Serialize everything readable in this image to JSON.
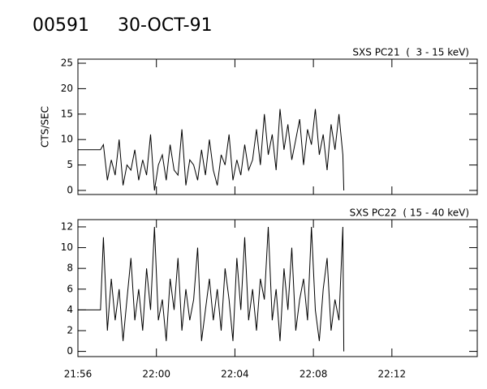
{
  "header": {
    "id": "00591",
    "date": "30-OCT-91"
  },
  "chart_data": [
    {
      "type": "line",
      "label": "SXS PC21  (  3 - 15 keV)",
      "ylabel": "CTS/SEC",
      "color": "#000000",
      "xlim": [
        1316,
        1336.35
      ],
      "ylim": [
        -0.8,
        25.8
      ],
      "yticks": [
        0,
        5,
        10,
        15,
        20,
        25
      ],
      "xticks": [
        1316,
        1320,
        1324,
        1328,
        1332
      ],
      "x": [
        1316,
        1317.15,
        1317.3,
        1317.5,
        1317.7,
        1317.9,
        1318.1,
        1318.3,
        1318.5,
        1318.7,
        1318.9,
        1319.1,
        1319.3,
        1319.5,
        1319.7,
        1319.9,
        1320.1,
        1320.3,
        1320.5,
        1320.7,
        1320.9,
        1321.1,
        1321.3,
        1321.5,
        1321.7,
        1321.9,
        1322.1,
        1322.3,
        1322.5,
        1322.7,
        1322.9,
        1323.1,
        1323.3,
        1323.5,
        1323.7,
        1323.9,
        1324.1,
        1324.3,
        1324.5,
        1324.7,
        1324.9,
        1325.1,
        1325.3,
        1325.5,
        1325.7,
        1325.9,
        1326.1,
        1326.3,
        1326.5,
        1326.7,
        1326.9,
        1327.1,
        1327.3,
        1327.5,
        1327.7,
        1327.9,
        1328.1,
        1328.3,
        1328.5,
        1328.7,
        1328.9,
        1329.1,
        1329.3,
        1329.5,
        1329.55
      ],
      "values": [
        8,
        8,
        9,
        2,
        6,
        3,
        10,
        1,
        5,
        4,
        8,
        2,
        6,
        3,
        11,
        0,
        5,
        7,
        2,
        9,
        4,
        3,
        12,
        1,
        6,
        5,
        2,
        8,
        3,
        10,
        4,
        1,
        7,
        5,
        11,
        2,
        6,
        3,
        9,
        4,
        6,
        12,
        5,
        15,
        7,
        11,
        4,
        16,
        8,
        13,
        6,
        10,
        14,
        5,
        12,
        9,
        16,
        7,
        11,
        4,
        13,
        8,
        15,
        7,
        0
      ]
    },
    {
      "type": "line",
      "label": "SXS PC22  ( 15 - 40 keV)",
      "color": "#000000",
      "xlim": [
        1316,
        1336.35
      ],
      "ylim": [
        -0.5,
        12.7
      ],
      "yticks": [
        0,
        2,
        4,
        6,
        8,
        10,
        12
      ],
      "xticks": [
        {
          "value": 1316,
          "label": "21:56"
        },
        {
          "value": 1320,
          "label": "22:00"
        },
        {
          "value": 1324,
          "label": "22:04"
        },
        {
          "value": 1328,
          "label": "22:08"
        },
        {
          "value": 1332,
          "label": "22:12"
        }
      ],
      "x": [
        1316,
        1317.15,
        1317.3,
        1317.5,
        1317.7,
        1317.9,
        1318.1,
        1318.3,
        1318.5,
        1318.7,
        1318.9,
        1319.1,
        1319.3,
        1319.5,
        1319.7,
        1319.9,
        1320.1,
        1320.3,
        1320.5,
        1320.7,
        1320.9,
        1321.1,
        1321.3,
        1321.5,
        1321.7,
        1321.9,
        1322.1,
        1322.3,
        1322.5,
        1322.7,
        1322.9,
        1323.1,
        1323.3,
        1323.5,
        1323.7,
        1323.9,
        1324.1,
        1324.3,
        1324.5,
        1324.7,
        1324.9,
        1325.1,
        1325.3,
        1325.5,
        1325.7,
        1325.9,
        1326.1,
        1326.3,
        1326.5,
        1326.7,
        1326.9,
        1327.1,
        1327.3,
        1327.5,
        1327.7,
        1327.9,
        1328.1,
        1328.3,
        1328.5,
        1328.7,
        1328.9,
        1329.1,
        1329.3,
        1329.5,
        1329.55
      ],
      "values": [
        4,
        4,
        11,
        2,
        7,
        3,
        6,
        1,
        5,
        9,
        3,
        6,
        2,
        8,
        4,
        12,
        3,
        5,
        1,
        7,
        4,
        9,
        2,
        6,
        3,
        5,
        10,
        1,
        4,
        7,
        3,
        6,
        2,
        8,
        5,
        1,
        9,
        4,
        11,
        3,
        6,
        2,
        7,
        5,
        12,
        3,
        6,
        1,
        8,
        4,
        10,
        2,
        5,
        7,
        3,
        12,
        4,
        1,
        6,
        9,
        2,
        5,
        3,
        12,
        0
      ]
    }
  ]
}
